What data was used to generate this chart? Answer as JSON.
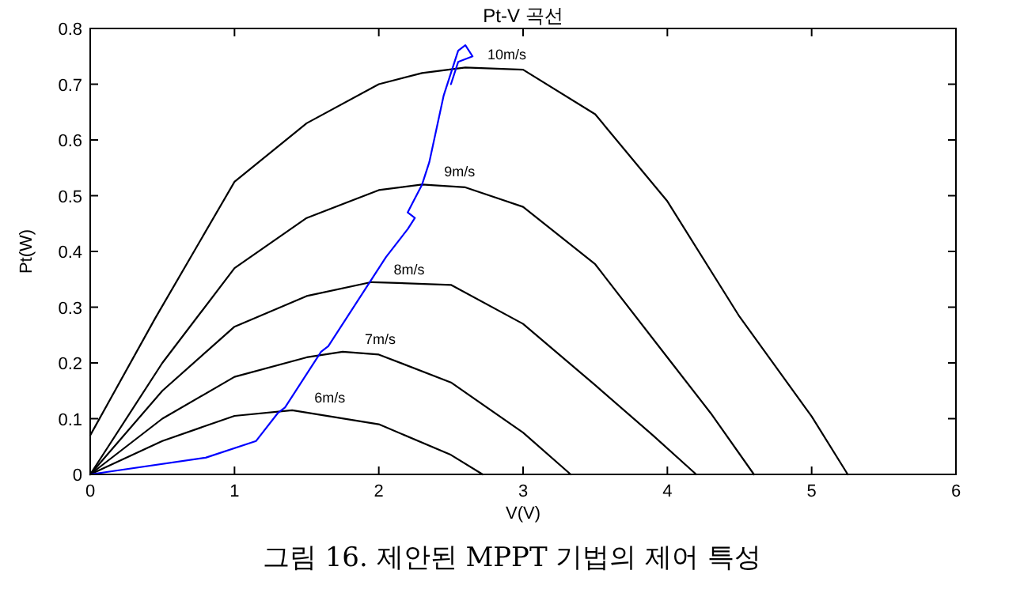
{
  "chart_data": {
    "type": "line",
    "title": "Pt-V 곡선",
    "xlabel": "V(V)",
    "ylabel": "Pt(W)",
    "annotations": [
      "그림 16. 제안된 MPPT 기법의 제어 특성"
    ],
    "xlim": [
      0,
      6
    ],
    "ylim": [
      0,
      0.8
    ],
    "xticks": [
      0,
      1,
      2,
      3,
      4,
      5,
      6
    ],
    "yticks": [
      0,
      0.1,
      0.2,
      0.3,
      0.4,
      0.5,
      0.6,
      0.7,
      0.8
    ],
    "grid": false,
    "marker": "none",
    "line_style": "solid",
    "series": [
      {
        "name": "10m/s",
        "color": "#000000",
        "x": [
          0,
          0.45,
          1,
          1.5,
          2,
          2.3,
          2.6,
          3,
          3.5,
          4,
          4.5,
          5,
          5.25
        ],
        "values": [
          0.07,
          0.28,
          0.525,
          0.63,
          0.7,
          0.72,
          0.73,
          0.726,
          0.646,
          0.49,
          0.283,
          0.104,
          0
        ]
      },
      {
        "name": "9m/s",
        "color": "#000000",
        "x": [
          0,
          0.5,
          1,
          1.5,
          2,
          2.3,
          2.6,
          3,
          3.5,
          4,
          4.3,
          4.6
        ],
        "values": [
          0,
          0.2,
          0.37,
          0.46,
          0.51,
          0.52,
          0.515,
          0.48,
          0.377,
          0.21,
          0.11,
          0
        ]
      },
      {
        "name": "8m/s",
        "color": "#000000",
        "x": [
          0,
          0.5,
          1,
          1.5,
          1.95,
          2.5,
          3,
          3.5,
          3.9,
          4.2
        ],
        "values": [
          0,
          0.15,
          0.265,
          0.32,
          0.345,
          0.34,
          0.27,
          0.16,
          0.07,
          0
        ]
      },
      {
        "name": "7m/s",
        "color": "#000000",
        "x": [
          0,
          0.5,
          1,
          1.5,
          1.75,
          2,
          2.5,
          3,
          3.33
        ],
        "values": [
          0,
          0.1,
          0.175,
          0.21,
          0.22,
          0.215,
          0.165,
          0.075,
          0
        ]
      },
      {
        "name": "6m/s",
        "color": "#000000",
        "x": [
          0,
          0.5,
          1,
          1.4,
          2,
          2.5,
          2.72
        ],
        "values": [
          0,
          0.06,
          0.105,
          0.115,
          0.09,
          0.035,
          0
        ]
      },
      {
        "color": "#0000ff",
        "x": [
          0,
          0.8,
          1.15,
          1.3,
          1.35,
          1.6,
          1.65,
          1.9,
          2.05,
          2.2,
          2.25,
          2.2,
          2.3,
          2.35,
          2.45,
          2.5,
          2.55,
          2.6,
          2.65,
          2.55,
          2.5
        ],
        "values": [
          0,
          0.03,
          0.06,
          0.11,
          0.12,
          0.22,
          0.23,
          0.33,
          0.39,
          0.44,
          0.46,
          0.47,
          0.52,
          0.56,
          0.68,
          0.72,
          0.76,
          0.77,
          0.75,
          0.74,
          0.7
        ]
      }
    ]
  }
}
